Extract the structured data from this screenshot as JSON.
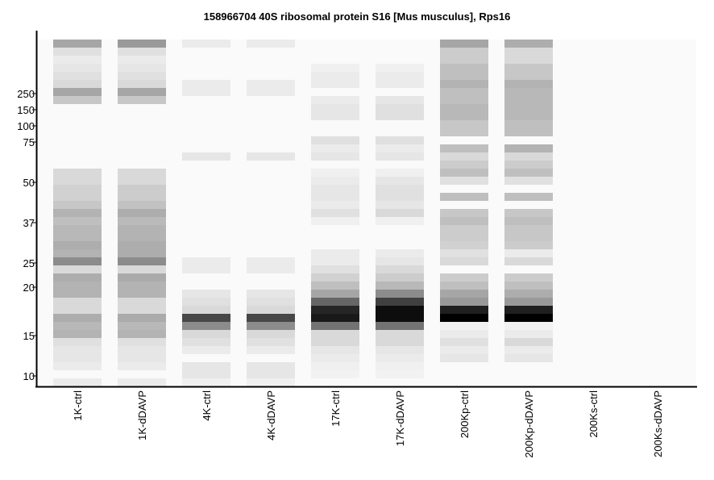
{
  "chart_data": {
    "type": "heatmap",
    "title": "158966704 40S ribosomal protein S16 [Mus musculus], Rps16",
    "xlabel": "",
    "ylabel": "",
    "y_ticks": [
      "250",
      "150",
      "100",
      "75",
      "50",
      "37",
      "25",
      "20",
      "15",
      "10"
    ],
    "lanes": [
      {
        "label": "1K-ctrl",
        "bands": [
          {
            "s": 0,
            "e": 1,
            "v": 0.35
          },
          {
            "s": 1,
            "e": 2,
            "v": 0.12
          },
          {
            "s": 2,
            "e": 3,
            "v": 0.08
          },
          {
            "s": 3,
            "e": 4,
            "v": 0.1
          },
          {
            "s": 4,
            "e": 5,
            "v": 0.12
          },
          {
            "s": 5,
            "e": 6,
            "v": 0.15
          },
          {
            "s": 6,
            "e": 7,
            "v": 0.35
          },
          {
            "s": 7,
            "e": 8,
            "v": 0.22
          },
          {
            "s": 16,
            "e": 18,
            "v": 0.15
          },
          {
            "s": 18,
            "e": 20,
            "v": 0.18
          },
          {
            "s": 20,
            "e": 21,
            "v": 0.22
          },
          {
            "s": 21,
            "e": 22,
            "v": 0.3
          },
          {
            "s": 22,
            "e": 23,
            "v": 0.25
          },
          {
            "s": 23,
            "e": 25,
            "v": 0.28
          },
          {
            "s": 25,
            "e": 26,
            "v": 0.32
          },
          {
            "s": 26,
            "e": 27,
            "v": 0.3
          },
          {
            "s": 27,
            "e": 28,
            "v": 0.45
          },
          {
            "s": 28,
            "e": 29,
            "v": 0.15
          },
          {
            "s": 29,
            "e": 30,
            "v": 0.32
          },
          {
            "s": 30,
            "e": 32,
            "v": 0.3
          },
          {
            "s": 32,
            "e": 34,
            "v": 0.15
          },
          {
            "s": 34,
            "e": 35,
            "v": 0.32
          },
          {
            "s": 35,
            "e": 36,
            "v": 0.28
          },
          {
            "s": 36,
            "e": 37,
            "v": 0.3
          },
          {
            "s": 37,
            "e": 38,
            "v": 0.12
          },
          {
            "s": 38,
            "e": 40,
            "v": 0.1
          },
          {
            "s": 40,
            "e": 41,
            "v": 0.08
          },
          {
            "s": 42,
            "e": 43,
            "v": 0.08
          }
        ]
      },
      {
        "label": "1K-dDAVP",
        "bands": [
          {
            "s": 0,
            "e": 1,
            "v": 0.4
          },
          {
            "s": 1,
            "e": 2,
            "v": 0.12
          },
          {
            "s": 2,
            "e": 3,
            "v": 0.08
          },
          {
            "s": 3,
            "e": 4,
            "v": 0.1
          },
          {
            "s": 4,
            "e": 5,
            "v": 0.12
          },
          {
            "s": 5,
            "e": 6,
            "v": 0.15
          },
          {
            "s": 6,
            "e": 7,
            "v": 0.35
          },
          {
            "s": 7,
            "e": 8,
            "v": 0.22
          },
          {
            "s": 16,
            "e": 18,
            "v": 0.15
          },
          {
            "s": 18,
            "e": 20,
            "v": 0.2
          },
          {
            "s": 20,
            "e": 21,
            "v": 0.24
          },
          {
            "s": 21,
            "e": 22,
            "v": 0.32
          },
          {
            "s": 22,
            "e": 23,
            "v": 0.27
          },
          {
            "s": 23,
            "e": 25,
            "v": 0.3
          },
          {
            "s": 25,
            "e": 26,
            "v": 0.32
          },
          {
            "s": 26,
            "e": 27,
            "v": 0.32
          },
          {
            "s": 27,
            "e": 28,
            "v": 0.45
          },
          {
            "s": 28,
            "e": 29,
            "v": 0.15
          },
          {
            "s": 29,
            "e": 30,
            "v": 0.33
          },
          {
            "s": 30,
            "e": 32,
            "v": 0.3
          },
          {
            "s": 32,
            "e": 34,
            "v": 0.15
          },
          {
            "s": 34,
            "e": 35,
            "v": 0.33
          },
          {
            "s": 35,
            "e": 36,
            "v": 0.28
          },
          {
            "s": 36,
            "e": 37,
            "v": 0.3
          },
          {
            "s": 37,
            "e": 38,
            "v": 0.12
          },
          {
            "s": 38,
            "e": 40,
            "v": 0.1
          },
          {
            "s": 40,
            "e": 41,
            "v": 0.08
          },
          {
            "s": 42,
            "e": 43,
            "v": 0.08
          }
        ]
      },
      {
        "label": "4K-ctrl",
        "bands": [
          {
            "s": 0,
            "e": 1,
            "v": 0.08
          },
          {
            "s": 5,
            "e": 7,
            "v": 0.08
          },
          {
            "s": 14,
            "e": 15,
            "v": 0.1
          },
          {
            "s": 27,
            "e": 29,
            "v": 0.08
          },
          {
            "s": 31,
            "e": 32,
            "v": 0.1
          },
          {
            "s": 32,
            "e": 33,
            "v": 0.12
          },
          {
            "s": 33,
            "e": 34,
            "v": 0.15
          },
          {
            "s": 34,
            "e": 35,
            "v": 0.72
          },
          {
            "s": 35,
            "e": 36,
            "v": 0.45
          },
          {
            "s": 36,
            "e": 37,
            "v": 0.15
          },
          {
            "s": 37,
            "e": 38,
            "v": 0.12
          },
          {
            "s": 38,
            "e": 39,
            "v": 0.08
          },
          {
            "s": 40,
            "e": 42,
            "v": 0.1
          },
          {
            "s": 42,
            "e": 43,
            "v": 0.06
          }
        ]
      },
      {
        "label": "4K-dDAVP",
        "bands": [
          {
            "s": 0,
            "e": 1,
            "v": 0.08
          },
          {
            "s": 5,
            "e": 7,
            "v": 0.08
          },
          {
            "s": 14,
            "e": 15,
            "v": 0.1
          },
          {
            "s": 27,
            "e": 29,
            "v": 0.08
          },
          {
            "s": 31,
            "e": 32,
            "v": 0.1
          },
          {
            "s": 32,
            "e": 33,
            "v": 0.12
          },
          {
            "s": 33,
            "e": 34,
            "v": 0.15
          },
          {
            "s": 34,
            "e": 35,
            "v": 0.72
          },
          {
            "s": 35,
            "e": 36,
            "v": 0.45
          },
          {
            "s": 36,
            "e": 37,
            "v": 0.15
          },
          {
            "s": 37,
            "e": 38,
            "v": 0.12
          },
          {
            "s": 38,
            "e": 39,
            "v": 0.08
          },
          {
            "s": 40,
            "e": 42,
            "v": 0.1
          },
          {
            "s": 42,
            "e": 43,
            "v": 0.06
          }
        ]
      },
      {
        "label": "17K-ctrl",
        "bands": [
          {
            "s": 3,
            "e": 4,
            "v": 0.06
          },
          {
            "s": 4,
            "e": 6,
            "v": 0.08
          },
          {
            "s": 7,
            "e": 8,
            "v": 0.08
          },
          {
            "s": 8,
            "e": 10,
            "v": 0.1
          },
          {
            "s": 12,
            "e": 13,
            "v": 0.12
          },
          {
            "s": 13,
            "e": 14,
            "v": 0.08
          },
          {
            "s": 14,
            "e": 15,
            "v": 0.1
          },
          {
            "s": 16,
            "e": 17,
            "v": 0.06
          },
          {
            "s": 17,
            "e": 18,
            "v": 0.08
          },
          {
            "s": 18,
            "e": 20,
            "v": 0.1
          },
          {
            "s": 20,
            "e": 21,
            "v": 0.08
          },
          {
            "s": 21,
            "e": 22,
            "v": 0.12
          },
          {
            "s": 22,
            "e": 23,
            "v": 0.06
          },
          {
            "s": 26,
            "e": 28,
            "v": 0.08
          },
          {
            "s": 28,
            "e": 29,
            "v": 0.12
          },
          {
            "s": 29,
            "e": 30,
            "v": 0.18
          },
          {
            "s": 30,
            "e": 31,
            "v": 0.25
          },
          {
            "s": 31,
            "e": 32,
            "v": 0.35
          },
          {
            "s": 32,
            "e": 33,
            "v": 0.6
          },
          {
            "s": 33,
            "e": 34,
            "v": 0.85
          },
          {
            "s": 34,
            "e": 35,
            "v": 0.9
          },
          {
            "s": 35,
            "e": 36,
            "v": 0.55
          },
          {
            "s": 36,
            "e": 38,
            "v": 0.15
          },
          {
            "s": 38,
            "e": 39,
            "v": 0.1
          },
          {
            "s": 39,
            "e": 40,
            "v": 0.08
          },
          {
            "s": 40,
            "e": 41,
            "v": 0.06
          },
          {
            "s": 41,
            "e": 42,
            "v": 0.05
          }
        ]
      },
      {
        "label": "17K-dDAVP",
        "bands": [
          {
            "s": 3,
            "e": 4,
            "v": 0.06
          },
          {
            "s": 4,
            "e": 6,
            "v": 0.08
          },
          {
            "s": 7,
            "e": 8,
            "v": 0.1
          },
          {
            "s": 8,
            "e": 10,
            "v": 0.12
          },
          {
            "s": 12,
            "e": 13,
            "v": 0.12
          },
          {
            "s": 13,
            "e": 14,
            "v": 0.08
          },
          {
            "s": 14,
            "e": 15,
            "v": 0.1
          },
          {
            "s": 16,
            "e": 17,
            "v": 0.06
          },
          {
            "s": 17,
            "e": 18,
            "v": 0.1
          },
          {
            "s": 18,
            "e": 20,
            "v": 0.12
          },
          {
            "s": 20,
            "e": 21,
            "v": 0.1
          },
          {
            "s": 21,
            "e": 22,
            "v": 0.15
          },
          {
            "s": 22,
            "e": 23,
            "v": 0.06
          },
          {
            "s": 26,
            "e": 27,
            "v": 0.08
          },
          {
            "s": 27,
            "e": 28,
            "v": 0.1
          },
          {
            "s": 28,
            "e": 29,
            "v": 0.15
          },
          {
            "s": 29,
            "e": 30,
            "v": 0.2
          },
          {
            "s": 30,
            "e": 31,
            "v": 0.28
          },
          {
            "s": 31,
            "e": 32,
            "v": 0.45
          },
          {
            "s": 32,
            "e": 33,
            "v": 0.75
          },
          {
            "s": 33,
            "e": 34,
            "v": 0.95
          },
          {
            "s": 34,
            "e": 35,
            "v": 0.95
          },
          {
            "s": 35,
            "e": 36,
            "v": 0.55
          },
          {
            "s": 36,
            "e": 38,
            "v": 0.15
          },
          {
            "s": 38,
            "e": 39,
            "v": 0.1
          },
          {
            "s": 39,
            "e": 40,
            "v": 0.08
          },
          {
            "s": 40,
            "e": 41,
            "v": 0.06
          },
          {
            "s": 41,
            "e": 42,
            "v": 0.05
          }
        ]
      },
      {
        "label": "200Kp-ctrl",
        "bands": [
          {
            "s": 0,
            "e": 1,
            "v": 0.35
          },
          {
            "s": 1,
            "e": 3,
            "v": 0.2
          },
          {
            "s": 3,
            "e": 5,
            "v": 0.25
          },
          {
            "s": 5,
            "e": 6,
            "v": 0.3
          },
          {
            "s": 6,
            "e": 8,
            "v": 0.25
          },
          {
            "s": 8,
            "e": 10,
            "v": 0.28
          },
          {
            "s": 10,
            "e": 12,
            "v": 0.22
          },
          {
            "s": 13,
            "e": 14,
            "v": 0.25
          },
          {
            "s": 14,
            "e": 15,
            "v": 0.15
          },
          {
            "s": 15,
            "e": 16,
            "v": 0.2
          },
          {
            "s": 16,
            "e": 17,
            "v": 0.25
          },
          {
            "s": 17,
            "e": 18,
            "v": 0.12
          },
          {
            "s": 19,
            "e": 20,
            "v": 0.25
          },
          {
            "s": 21,
            "e": 22,
            "v": 0.22
          },
          {
            "s": 22,
            "e": 23,
            "v": 0.25
          },
          {
            "s": 23,
            "e": 25,
            "v": 0.2
          },
          {
            "s": 25,
            "e": 26,
            "v": 0.18
          },
          {
            "s": 26,
            "e": 27,
            "v": 0.12
          },
          {
            "s": 27,
            "e": 28,
            "v": 0.15
          },
          {
            "s": 29,
            "e": 30,
            "v": 0.2
          },
          {
            "s": 30,
            "e": 31,
            "v": 0.25
          },
          {
            "s": 31,
            "e": 32,
            "v": 0.35
          },
          {
            "s": 32,
            "e": 33,
            "v": 0.4
          },
          {
            "s": 33,
            "e": 34,
            "v": 0.88
          },
          {
            "s": 34,
            "e": 35,
            "v": 1.0
          },
          {
            "s": 35,
            "e": 36,
            "v": 0.05
          },
          {
            "s": 36,
            "e": 37,
            "v": 0.08
          },
          {
            "s": 37,
            "e": 38,
            "v": 0.12
          },
          {
            "s": 38,
            "e": 39,
            "v": 0.08
          },
          {
            "s": 39,
            "e": 40,
            "v": 0.1
          }
        ]
      },
      {
        "label": "200Kp-dDAVP",
        "bands": [
          {
            "s": 0,
            "e": 1,
            "v": 0.32
          },
          {
            "s": 1,
            "e": 3,
            "v": 0.15
          },
          {
            "s": 3,
            "e": 5,
            "v": 0.22
          },
          {
            "s": 5,
            "e": 6,
            "v": 0.3
          },
          {
            "s": 6,
            "e": 8,
            "v": 0.28
          },
          {
            "s": 8,
            "e": 10,
            "v": 0.28
          },
          {
            "s": 10,
            "e": 12,
            "v": 0.25
          },
          {
            "s": 13,
            "e": 14,
            "v": 0.3
          },
          {
            "s": 14,
            "e": 15,
            "v": 0.15
          },
          {
            "s": 15,
            "e": 16,
            "v": 0.2
          },
          {
            "s": 16,
            "e": 17,
            "v": 0.25
          },
          {
            "s": 17,
            "e": 18,
            "v": 0.12
          },
          {
            "s": 19,
            "e": 20,
            "v": 0.25
          },
          {
            "s": 21,
            "e": 22,
            "v": 0.22
          },
          {
            "s": 22,
            "e": 23,
            "v": 0.25
          },
          {
            "s": 23,
            "e": 25,
            "v": 0.22
          },
          {
            "s": 25,
            "e": 26,
            "v": 0.2
          },
          {
            "s": 26,
            "e": 27,
            "v": 0.08
          },
          {
            "s": 27,
            "e": 28,
            "v": 0.15
          },
          {
            "s": 29,
            "e": 30,
            "v": 0.2
          },
          {
            "s": 30,
            "e": 31,
            "v": 0.25
          },
          {
            "s": 31,
            "e": 32,
            "v": 0.32
          },
          {
            "s": 32,
            "e": 33,
            "v": 0.4
          },
          {
            "s": 33,
            "e": 34,
            "v": 0.88
          },
          {
            "s": 34,
            "e": 35,
            "v": 1.0
          },
          {
            "s": 35,
            "e": 36,
            "v": 0.05
          },
          {
            "s": 36,
            "e": 37,
            "v": 0.08
          },
          {
            "s": 37,
            "e": 38,
            "v": 0.15
          },
          {
            "s": 38,
            "e": 39,
            "v": 0.08
          },
          {
            "s": 39,
            "e": 40,
            "v": 0.1
          }
        ]
      },
      {
        "label": "200Ks-ctrl",
        "bands": []
      },
      {
        "label": "200Ks-dDAVP",
        "bands": []
      }
    ],
    "colors": {
      "background": "#f9faf9",
      "band_max": "#000000",
      "axis": "#000000"
    }
  }
}
